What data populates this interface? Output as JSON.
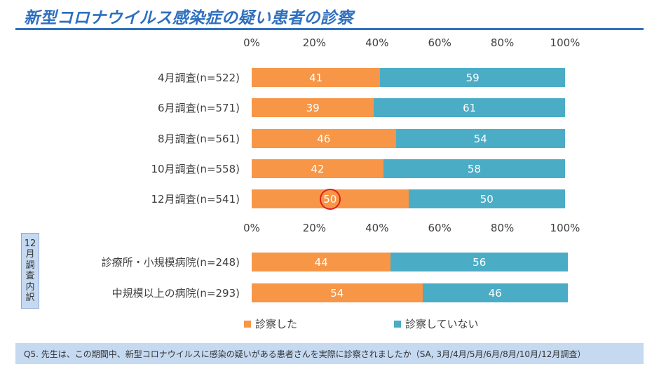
{
  "title": "新型コロナウイルス感染症の疑い患者の診察",
  "side_label": [
    "12",
    "月",
    "調",
    "査",
    "内",
    "訳"
  ],
  "legend": [
    {
      "label": "診察した",
      "color": "#f79646"
    },
    {
      "label": "診察していない",
      "color": "#4bacc6"
    }
  ],
  "footer": "Q5. 先生は、この期間中、新型コロナウイルスに感染の疑いがある患者さんを実際に診察されましたか（SA, 3月/4月/5月/6月/8月/10月/12月調査）",
  "chart_data": [
    {
      "type": "bar",
      "orientation": "horizontal",
      "stacked": true,
      "xlim": [
        0,
        100
      ],
      "xticks": [
        "0%",
        "20%",
        "40%",
        "60%",
        "80%",
        "100%"
      ],
      "categories": [
        "4月調査(n=522)",
        "6月調査(n=571)",
        "8月調査(n=561)",
        "10月調査(n=558)",
        "12月調査(n=541)"
      ],
      "series": [
        {
          "name": "診察した",
          "values": [
            41,
            39,
            46,
            42,
            50
          ]
        },
        {
          "name": "診察していない",
          "values": [
            59,
            61,
            54,
            58,
            50
          ]
        }
      ],
      "highlight": {
        "category": "12月調査(n=541)",
        "series": "診察した",
        "mark": "red circle"
      }
    },
    {
      "type": "bar",
      "orientation": "horizontal",
      "stacked": true,
      "xlim": [
        0,
        100
      ],
      "categories": [
        "診療所・小規模病院(n=248)",
        "中規模以上の病院(n=293)"
      ],
      "series": [
        {
          "name": "診察した",
          "values": [
            44,
            54
          ]
        },
        {
          "name": "診察していない",
          "values": [
            56,
            46
          ]
        }
      ]
    }
  ]
}
